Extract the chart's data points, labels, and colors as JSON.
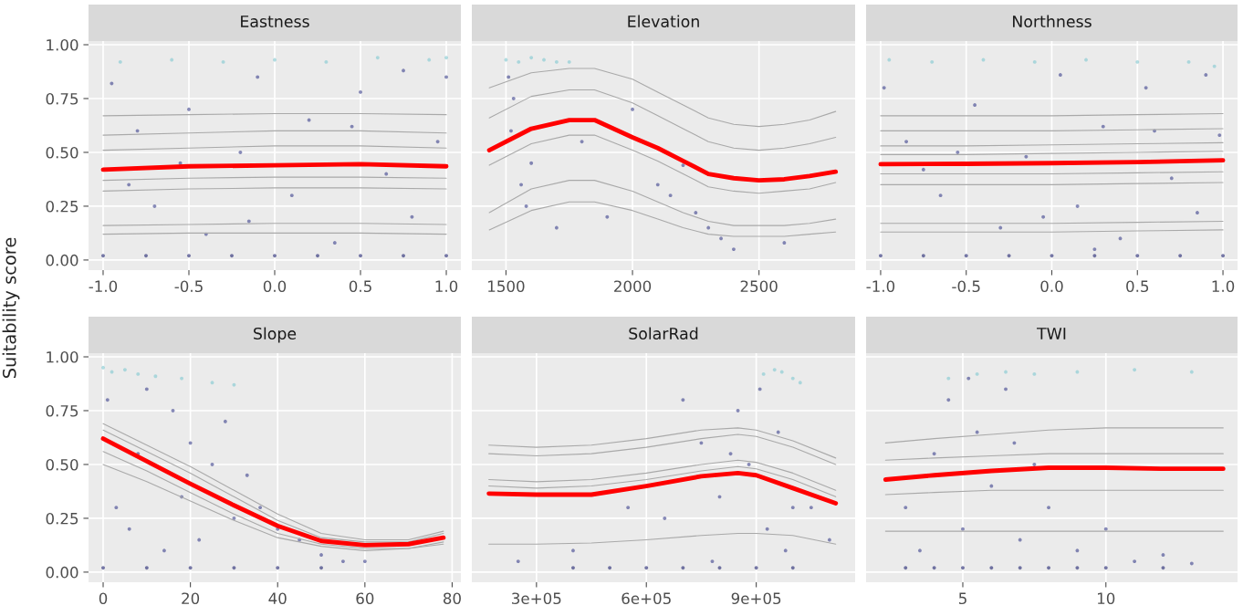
{
  "chart_data": [
    {
      "type": "line",
      "title": "Eastness",
      "ylabel": "Suitability score",
      "xlim": [
        -1.085,
        1.085
      ],
      "xticks": [
        {
          "value": -1,
          "label": "-1.0"
        },
        {
          "value": -0.5,
          "label": "-0.5"
        },
        {
          "value": 0,
          "label": "0.0"
        },
        {
          "value": 0.5,
          "label": "0.5"
        },
        {
          "value": 1,
          "label": "1.0"
        }
      ],
      "ylim": [
        -0.047,
        1.017
      ],
      "yticks": [
        {
          "value": 0,
          "label": "0.00"
        },
        {
          "value": 0.25,
          "label": "0.25"
        },
        {
          "value": 0.5,
          "label": "0.50"
        },
        {
          "value": 0.75,
          "label": "0.75"
        },
        {
          "value": 1,
          "label": "1.00"
        }
      ],
      "grid": true,
      "series": [
        {
          "type": "scatter",
          "color": "#7fc8d0",
          "x": [
            -0.9,
            -0.6,
            -0.3,
            0,
            0.3,
            0.6,
            0.9,
            1.0
          ],
          "values": [
            0.92,
            0.93,
            0.92,
            0.93,
            0.92,
            0.94,
            0.93,
            0.94
          ]
        },
        {
          "type": "scatter",
          "color": "#3b3f8c",
          "x": [
            -0.95,
            -0.8,
            -0.7,
            -0.5,
            -0.4,
            -0.2,
            -0.1,
            0.1,
            0.2,
            0.35,
            0.5,
            0.65,
            0.8,
            0.95,
            1.0,
            -0.85,
            -0.15,
            0.45,
            0.75,
            -0.55
          ],
          "values": [
            0.82,
            0.6,
            0.25,
            0.7,
            0.12,
            0.5,
            0.85,
            0.3,
            0.65,
            0.08,
            0.78,
            0.4,
            0.2,
            0.55,
            0.85,
            0.35,
            0.18,
            0.62,
            0.88,
            0.45
          ]
        },
        {
          "type": "scatter",
          "color": "#1c1f6e",
          "x": [
            -1,
            -0.75,
            -0.5,
            -0.25,
            0,
            0.25,
            0.5,
            0.75,
            1
          ],
          "values": [
            0.02,
            0.02,
            0.02,
            0.02,
            0.02,
            0.02,
            0.02,
            0.02,
            0.02
          ]
        },
        {
          "type": "line",
          "color": "#a9a9a9",
          "x": [
            -1,
            -0.5,
            0,
            0.5,
            1
          ],
          "values": [
            0.67,
            0.675,
            0.68,
            0.68,
            0.675
          ]
        },
        {
          "type": "line",
          "color": "#a9a9a9",
          "x": [
            -1,
            -0.5,
            0,
            0.5,
            1
          ],
          "values": [
            0.58,
            0.59,
            0.6,
            0.6,
            0.59
          ]
        },
        {
          "type": "line",
          "color": "#a9a9a9",
          "x": [
            -1,
            -0.5,
            0,
            0.5,
            1
          ],
          "values": [
            0.51,
            0.52,
            0.53,
            0.53,
            0.52
          ]
        },
        {
          "type": "line",
          "color": "#a9a9a9",
          "x": [
            -1,
            -0.5,
            0,
            0.5,
            1
          ],
          "values": [
            0.37,
            0.38,
            0.385,
            0.385,
            0.38
          ]
        },
        {
          "type": "line",
          "color": "#a9a9a9",
          "x": [
            -1,
            -0.5,
            0,
            0.5,
            1
          ],
          "values": [
            0.32,
            0.33,
            0.335,
            0.335,
            0.33
          ]
        },
        {
          "type": "line",
          "color": "#a9a9a9",
          "x": [
            -1,
            -0.5,
            0,
            0.5,
            1
          ],
          "values": [
            0.16,
            0.165,
            0.17,
            0.17,
            0.165
          ]
        },
        {
          "type": "line",
          "color": "#a9a9a9",
          "x": [
            -1,
            -0.5,
            0,
            0.5,
            1
          ],
          "values": [
            0.12,
            0.125,
            0.125,
            0.125,
            0.12
          ]
        },
        {
          "type": "line",
          "color": "#ff0000",
          "x": [
            -1,
            -0.5,
            0,
            0.5,
            1
          ],
          "values": [
            0.42,
            0.435,
            0.44,
            0.445,
            0.435
          ]
        }
      ]
    },
    {
      "type": "line",
      "title": "Elevation",
      "tick_labels": "x",
      "xlim": [
        1365,
        2880
      ],
      "xticks": [
        1500,
        2000,
        2500
      ],
      "ylim": [
        -0.047,
        1.017
      ],
      "yticks": [
        {
          "value": 0,
          "label": null
        },
        {
          "value": 0.25,
          "label": null
        },
        {
          "value": 0.5,
          "label": null
        },
        {
          "value": 0.75,
          "label": null
        },
        {
          "value": 1,
          "label": null
        }
      ],
      "grid": true,
      "series": [
        {
          "type": "scatter",
          "color": "#7fc8d0",
          "x": [
            1500,
            1550,
            1600,
            1650,
            1700,
            1750
          ],
          "values": [
            0.93,
            0.92,
            0.94,
            0.93,
            0.92,
            0.92
          ]
        },
        {
          "type": "scatter",
          "color": "#3b3f8c",
          "x": [
            1510,
            1520,
            1560,
            1600,
            1700,
            1800,
            1900,
            2000,
            2100,
            2150,
            2200,
            2250,
            2300,
            2350,
            2400,
            2600,
            1530,
            1580
          ],
          "values": [
            0.85,
            0.6,
            0.35,
            0.45,
            0.15,
            0.55,
            0.2,
            0.7,
            0.35,
            0.3,
            0.44,
            0.22,
            0.15,
            0.1,
            0.05,
            0.08,
            0.75,
            0.25
          ]
        },
        {
          "type": "line",
          "color": "#a9a9a9",
          "x": [
            1434,
            1600,
            1750,
            1850,
            2000,
            2100,
            2200,
            2300,
            2400,
            2500,
            2600,
            2700,
            2803
          ],
          "values": [
            0.8,
            0.87,
            0.89,
            0.89,
            0.84,
            0.78,
            0.72,
            0.66,
            0.63,
            0.62,
            0.63,
            0.65,
            0.69
          ]
        },
        {
          "type": "line",
          "color": "#a9a9a9",
          "x": [
            1434,
            1600,
            1750,
            1850,
            2000,
            2100,
            2200,
            2300,
            2400,
            2500,
            2600,
            2700,
            2803
          ],
          "values": [
            0.66,
            0.76,
            0.79,
            0.79,
            0.73,
            0.67,
            0.61,
            0.55,
            0.52,
            0.51,
            0.52,
            0.54,
            0.57
          ]
        },
        {
          "type": "line",
          "color": "#a9a9a9",
          "x": [
            1434,
            1600,
            1750,
            1850,
            2000,
            2100,
            2200,
            2300,
            2400,
            2500,
            2600,
            2700,
            2803
          ],
          "values": [
            0.44,
            0.54,
            0.58,
            0.58,
            0.51,
            0.46,
            0.4,
            0.34,
            0.32,
            0.31,
            0.32,
            0.33,
            0.36
          ]
        },
        {
          "type": "line",
          "color": "#a9a9a9",
          "x": [
            1434,
            1600,
            1750,
            1850,
            2000,
            2100,
            2200,
            2300,
            2400,
            2500,
            2600,
            2700,
            2803
          ],
          "values": [
            0.22,
            0.33,
            0.37,
            0.37,
            0.32,
            0.27,
            0.22,
            0.18,
            0.16,
            0.16,
            0.16,
            0.17,
            0.19
          ]
        },
        {
          "type": "line",
          "color": "#a9a9a9",
          "x": [
            1434,
            1600,
            1750,
            1850,
            2000,
            2100,
            2200,
            2300,
            2400,
            2500,
            2600,
            2700,
            2803
          ],
          "values": [
            0.14,
            0.23,
            0.27,
            0.27,
            0.23,
            0.19,
            0.15,
            0.12,
            0.11,
            0.11,
            0.11,
            0.12,
            0.13
          ]
        },
        {
          "type": "line",
          "color": "#ff0000",
          "x": [
            1434,
            1600,
            1750,
            1850,
            2000,
            2100,
            2200,
            2300,
            2400,
            2500,
            2600,
            2700,
            2803
          ],
          "values": [
            0.51,
            0.61,
            0.65,
            0.65,
            0.57,
            0.52,
            0.46,
            0.4,
            0.38,
            0.37,
            0.375,
            0.39,
            0.41
          ]
        }
      ]
    },
    {
      "type": "line",
      "title": "Northness",
      "tick_labels": "x",
      "xlim": [
        -1.085,
        1.085
      ],
      "xticks": [
        {
          "value": -1,
          "label": "-1.0"
        },
        {
          "value": -0.5,
          "label": "-0.5"
        },
        {
          "value": 0,
          "label": "0.0"
        },
        {
          "value": 0.5,
          "label": "0.5"
        },
        {
          "value": 1,
          "label": "1.0"
        }
      ],
      "ylim": [
        -0.047,
        1.017
      ],
      "yticks": [
        {
          "value": 0,
          "label": null
        },
        {
          "value": 0.25,
          "label": null
        },
        {
          "value": 0.5,
          "label": null
        },
        {
          "value": 0.75,
          "label": null
        },
        {
          "value": 1,
          "label": null
        }
      ],
      "grid": true,
      "series": [
        {
          "type": "scatter",
          "color": "#7fc8d0",
          "x": [
            -0.95,
            -0.7,
            -0.4,
            -0.1,
            0.2,
            0.5,
            0.8,
            0.95
          ],
          "values": [
            0.93,
            0.92,
            0.93,
            0.92,
            0.93,
            0.92,
            0.92,
            0.9
          ]
        },
        {
          "type": "scatter",
          "color": "#3b3f8c",
          "x": [
            -0.98,
            -0.85,
            -0.65,
            -0.45,
            -0.3,
            -0.15,
            0.05,
            0.15,
            0.3,
            0.4,
            0.55,
            0.7,
            0.85,
            0.98,
            -0.75,
            -0.05,
            0.6,
            0.9,
            -0.55,
            0.25
          ],
          "values": [
            0.8,
            0.55,
            0.3,
            0.72,
            0.15,
            0.48,
            0.86,
            0.25,
            0.62,
            0.1,
            0.8,
            0.38,
            0.22,
            0.58,
            0.42,
            0.2,
            0.6,
            0.86,
            0.5,
            0.05
          ]
        },
        {
          "type": "scatter",
          "color": "#1c1f6e",
          "x": [
            -1,
            -0.75,
            -0.5,
            -0.25,
            0,
            0.25,
            0.5,
            0.75,
            1
          ],
          "values": [
            0.02,
            0.02,
            0.02,
            0.02,
            0.02,
            0.02,
            0.02,
            0.02,
            0.02
          ]
        },
        {
          "type": "line",
          "color": "#a9a9a9",
          "x": [
            -1,
            -0.5,
            0,
            0.5,
            1
          ],
          "values": [
            0.67,
            0.67,
            0.67,
            0.675,
            0.68
          ]
        },
        {
          "type": "line",
          "color": "#a9a9a9",
          "x": [
            -1,
            -0.5,
            0,
            0.5,
            1
          ],
          "values": [
            0.6,
            0.6,
            0.6,
            0.605,
            0.61
          ]
        },
        {
          "type": "line",
          "color": "#a9a9a9",
          "x": [
            -1,
            -0.5,
            0,
            0.5,
            1
          ],
          "values": [
            0.53,
            0.53,
            0.535,
            0.54,
            0.545
          ]
        },
        {
          "type": "line",
          "color": "#a9a9a9",
          "x": [
            -1,
            -0.5,
            0,
            0.5,
            1
          ],
          "values": [
            0.49,
            0.49,
            0.495,
            0.5,
            0.505
          ]
        },
        {
          "type": "line",
          "color": "#a9a9a9",
          "x": [
            -1,
            -0.5,
            0,
            0.5,
            1
          ],
          "values": [
            0.4,
            0.4,
            0.4,
            0.405,
            0.41
          ]
        },
        {
          "type": "line",
          "color": "#a9a9a9",
          "x": [
            -1,
            -0.5,
            0,
            0.5,
            1
          ],
          "values": [
            0.35,
            0.35,
            0.35,
            0.355,
            0.36
          ]
        },
        {
          "type": "line",
          "color": "#a9a9a9",
          "x": [
            -1,
            -0.5,
            0,
            0.5,
            1
          ],
          "values": [
            0.17,
            0.17,
            0.17,
            0.175,
            0.18
          ]
        },
        {
          "type": "line",
          "color": "#a9a9a9",
          "x": [
            -1,
            -0.5,
            0,
            0.5,
            1
          ],
          "values": [
            0.13,
            0.13,
            0.13,
            0.135,
            0.14
          ]
        },
        {
          "type": "line",
          "color": "#ff0000",
          "x": [
            -1,
            -0.5,
            0,
            0.5,
            1
          ],
          "values": [
            0.445,
            0.447,
            0.45,
            0.455,
            0.463
          ]
        }
      ]
    },
    {
      "type": "line",
      "title": "Slope",
      "xlim": [
        -3.35,
        82
      ],
      "xticks": [
        0,
        20,
        40,
        60,
        80
      ],
      "ylim": [
        -0.047,
        1.017
      ],
      "yticks": [
        {
          "value": 0,
          "label": "0.00"
        },
        {
          "value": 0.25,
          "label": "0.25"
        },
        {
          "value": 0.5,
          "label": "0.50"
        },
        {
          "value": 0.75,
          "label": "0.75"
        },
        {
          "value": 1,
          "label": "1.00"
        }
      ],
      "grid": true,
      "series": [
        {
          "type": "scatter",
          "color": "#7fc8d0",
          "x": [
            0,
            2,
            5,
            8,
            12,
            18,
            25,
            30
          ],
          "values": [
            0.95,
            0.93,
            0.94,
            0.92,
            0.91,
            0.9,
            0.88,
            0.87
          ]
        },
        {
          "type": "scatter",
          "color": "#3b3f8c",
          "x": [
            1,
            3,
            6,
            10,
            14,
            16,
            20,
            22,
            25,
            28,
            30,
            33,
            36,
            40,
            45,
            50,
            55,
            60,
            8,
            18
          ],
          "values": [
            0.8,
            0.3,
            0.2,
            0.85,
            0.1,
            0.75,
            0.6,
            0.15,
            0.5,
            0.7,
            0.25,
            0.45,
            0.3,
            0.2,
            0.15,
            0.08,
            0.05,
            0.05,
            0.55,
            0.35
          ]
        },
        {
          "type": "scatter",
          "color": "#1c1f6e",
          "x": [
            0,
            10,
            20,
            30,
            40,
            50
          ],
          "values": [
            0.02,
            0.02,
            0.02,
            0.02,
            0.02,
            0.02
          ]
        },
        {
          "type": "line",
          "color": "#a9a9a9",
          "x": [
            0,
            10,
            20,
            30,
            40,
            50,
            60,
            70,
            78
          ],
          "values": [
            0.69,
            0.59,
            0.49,
            0.38,
            0.27,
            0.18,
            0.15,
            0.15,
            0.19
          ]
        },
        {
          "type": "line",
          "color": "#a9a9a9",
          "x": [
            0,
            10,
            20,
            30,
            40,
            50,
            60,
            70,
            78
          ],
          "values": [
            0.66,
            0.56,
            0.46,
            0.35,
            0.24,
            0.16,
            0.14,
            0.14,
            0.18
          ]
        },
        {
          "type": "line",
          "color": "#a9a9a9",
          "x": [
            0,
            10,
            20,
            30,
            40,
            50,
            60,
            70,
            78
          ],
          "values": [
            0.56,
            0.47,
            0.37,
            0.27,
            0.18,
            0.13,
            0.11,
            0.11,
            0.14
          ]
        },
        {
          "type": "line",
          "color": "#a9a9a9",
          "x": [
            0,
            10,
            20,
            30,
            40,
            50,
            60,
            70,
            78
          ],
          "values": [
            0.5,
            0.42,
            0.33,
            0.24,
            0.16,
            0.12,
            0.1,
            0.11,
            0.13
          ]
        },
        {
          "type": "line",
          "color": "#ff0000",
          "x": [
            0,
            10,
            20,
            30,
            40,
            50,
            60,
            70,
            78
          ],
          "values": [
            0.62,
            0.515,
            0.41,
            0.31,
            0.215,
            0.145,
            0.125,
            0.13,
            0.16
          ]
        }
      ]
    },
    {
      "type": "line",
      "title": "SolarRad",
      "tick_labels": "x",
      "xlim": [
        123500,
        1170000
      ],
      "xticks": [
        {
          "value": 300000,
          "label": "3e+05"
        },
        {
          "value": 600000,
          "label": "6e+05"
        },
        {
          "value": 900000,
          "label": "9e+05"
        }
      ],
      "ylim": [
        -0.047,
        1.017
      ],
      "yticks": [
        {
          "value": 0,
          "label": null
        },
        {
          "value": 0.25,
          "label": null
        },
        {
          "value": 0.5,
          "label": null
        },
        {
          "value": 0.75,
          "label": null
        },
        {
          "value": 1,
          "label": null
        }
      ],
      "grid": true,
      "series": [
        {
          "type": "scatter",
          "color": "#7fc8d0",
          "x": [
            920000,
            950000,
            970000,
            1000000,
            1020000
          ],
          "values": [
            0.92,
            0.94,
            0.93,
            0.9,
            0.88
          ]
        },
        {
          "type": "scatter",
          "color": "#3b3f8c",
          "x": [
            250000,
            400000,
            550000,
            650000,
            700000,
            750000,
            800000,
            850000,
            880000,
            910000,
            930000,
            960000,
            980000,
            1000000,
            1050000,
            1100000,
            780000,
            830000
          ],
          "values": [
            0.05,
            0.1,
            0.3,
            0.25,
            0.8,
            0.6,
            0.35,
            0.75,
            0.5,
            0.85,
            0.2,
            0.65,
            0.1,
            0.3,
            0.3,
            0.15,
            0.05,
            0.55
          ]
        },
        {
          "type": "scatter",
          "color": "#1c1f6e",
          "x": [
            400000,
            500000,
            600000,
            700000,
            800000,
            900000,
            1000000
          ],
          "values": [
            0.02,
            0.02,
            0.02,
            0.02,
            0.02,
            0.02,
            0.02
          ]
        },
        {
          "type": "line",
          "color": "#a9a9a9",
          "x": [
            170000,
            300000,
            450000,
            600000,
            750000,
            850000,
            900000,
            1000000,
            1117000
          ],
          "values": [
            0.59,
            0.58,
            0.59,
            0.62,
            0.66,
            0.67,
            0.66,
            0.61,
            0.53
          ]
        },
        {
          "type": "line",
          "color": "#a9a9a9",
          "x": [
            170000,
            300000,
            450000,
            600000,
            750000,
            850000,
            900000,
            1000000,
            1117000
          ],
          "values": [
            0.55,
            0.54,
            0.55,
            0.58,
            0.62,
            0.64,
            0.63,
            0.58,
            0.5
          ]
        },
        {
          "type": "line",
          "color": "#a9a9a9",
          "x": [
            170000,
            300000,
            450000,
            600000,
            750000,
            850000,
            900000,
            1000000,
            1117000
          ],
          "values": [
            0.43,
            0.42,
            0.43,
            0.46,
            0.5,
            0.52,
            0.51,
            0.46,
            0.38
          ]
        },
        {
          "type": "line",
          "color": "#a9a9a9",
          "x": [
            170000,
            300000,
            450000,
            600000,
            750000,
            850000,
            900000,
            1000000,
            1117000
          ],
          "values": [
            0.4,
            0.39,
            0.4,
            0.43,
            0.47,
            0.49,
            0.48,
            0.43,
            0.35
          ]
        },
        {
          "type": "line",
          "color": "#a9a9a9",
          "x": [
            170000,
            300000,
            450000,
            600000,
            750000,
            850000,
            900000,
            1000000,
            1117000
          ],
          "values": [
            0.13,
            0.13,
            0.135,
            0.15,
            0.17,
            0.18,
            0.18,
            0.17,
            0.13
          ]
        },
        {
          "type": "line",
          "color": "#ff0000",
          "x": [
            170000,
            300000,
            450000,
            600000,
            750000,
            850000,
            900000,
            1000000,
            1117000
          ],
          "values": [
            0.365,
            0.36,
            0.36,
            0.4,
            0.445,
            0.46,
            0.45,
            0.39,
            0.32
          ]
        }
      ]
    },
    {
      "type": "line",
      "title": "TWI",
      "tick_labels": "x",
      "xlim": [
        1.62,
        14.6
      ],
      "xticks": [
        5,
        10
      ],
      "ylim": [
        -0.047,
        1.017
      ],
      "yticks": [
        {
          "value": 0,
          "label": null
        },
        {
          "value": 0.25,
          "label": null
        },
        {
          "value": 0.5,
          "label": null
        },
        {
          "value": 0.75,
          "label": null
        },
        {
          "value": 1,
          "label": null
        }
      ],
      "grid": true,
      "series": [
        {
          "type": "scatter",
          "color": "#7fc8d0",
          "x": [
            4.5,
            5.5,
            6.5,
            7.5,
            9,
            11,
            13
          ],
          "values": [
            0.9,
            0.92,
            0.93,
            0.92,
            0.93,
            0.94,
            0.93
          ]
        },
        {
          "type": "scatter",
          "color": "#3b3f8c",
          "x": [
            3,
            3.5,
            4,
            4.5,
            5,
            5.5,
            6,
            6.5,
            7,
            7.5,
            8,
            9,
            10,
            11,
            12,
            13,
            5.2,
            6.8
          ],
          "values": [
            0.3,
            0.1,
            0.55,
            0.8,
            0.2,
            0.65,
            0.4,
            0.85,
            0.15,
            0.5,
            0.3,
            0.1,
            0.2,
            0.05,
            0.08,
            0.04,
            0.9,
            0.6
          ]
        },
        {
          "type": "scatter",
          "color": "#1c1f6e",
          "x": [
            3,
            4,
            5,
            6,
            7,
            8,
            9,
            10,
            12
          ],
          "values": [
            0.02,
            0.02,
            0.02,
            0.02,
            0.02,
            0.02,
            0.02,
            0.02,
            0.02
          ]
        },
        {
          "type": "line",
          "color": "#a9a9a9",
          "x": [
            2.3,
            4,
            6,
            8,
            10,
            12,
            14.1
          ],
          "values": [
            0.6,
            0.62,
            0.64,
            0.66,
            0.67,
            0.67,
            0.67
          ]
        },
        {
          "type": "line",
          "color": "#a9a9a9",
          "x": [
            2.3,
            4,
            6,
            8,
            10,
            12,
            14.1
          ],
          "values": [
            0.52,
            0.53,
            0.54,
            0.55,
            0.55,
            0.55,
            0.55
          ]
        },
        {
          "type": "line",
          "color": "#a9a9a9",
          "x": [
            2.3,
            4,
            6,
            8,
            10,
            12,
            14.1
          ],
          "values": [
            0.36,
            0.37,
            0.38,
            0.38,
            0.38,
            0.38,
            0.38
          ]
        },
        {
          "type": "line",
          "color": "#a9a9a9",
          "x": [
            2.3,
            4,
            6,
            8,
            10,
            12,
            14.1
          ],
          "values": [
            0.19,
            0.19,
            0.19,
            0.19,
            0.19,
            0.19,
            0.19
          ]
        },
        {
          "type": "line",
          "color": "#ff0000",
          "x": [
            2.3,
            4,
            6,
            8,
            10,
            12,
            14.1
          ],
          "values": [
            0.43,
            0.45,
            0.47,
            0.485,
            0.485,
            0.48,
            0.48
          ]
        }
      ]
    }
  ]
}
